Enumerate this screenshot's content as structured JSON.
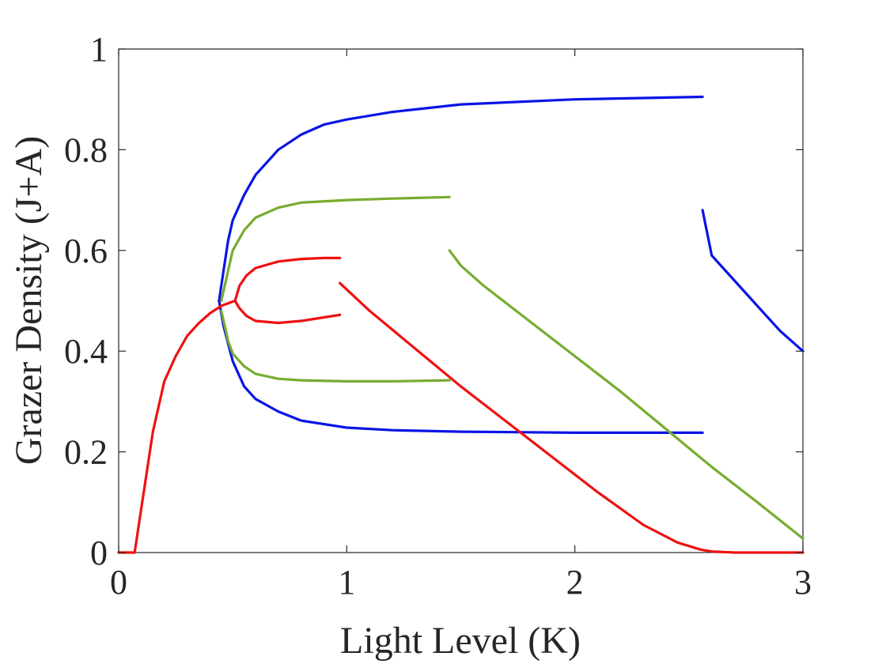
{
  "chart_data": {
    "type": "scatter",
    "title": "",
    "xlabel": "Light Level (K)",
    "ylabel": "Grazer Density (J+A)",
    "xlim": [
      0,
      3
    ],
    "ylim": [
      0,
      1
    ],
    "xticks": [
      0,
      1,
      2,
      3
    ],
    "xtick_labels": [
      "0",
      "1",
      "2",
      "3"
    ],
    "yticks": [
      0,
      0.2,
      0.4,
      0.6,
      0.8,
      1
    ],
    "ytick_labels": [
      "0",
      "0.2",
      "0.4",
      "0.6",
      "0.8",
      "1"
    ],
    "grid": false,
    "colors": {
      "blue": "#0a14e6",
      "green": "#77ac30",
      "red": "#ee1111",
      "axis": "#262626"
    },
    "series": [
      {
        "color": "blue",
        "segment": "upper branch",
        "x": [
          0.44,
          0.46,
          0.48,
          0.5,
          0.55,
          0.6,
          0.7,
          0.8,
          0.9,
          1.0,
          1.2,
          1.5,
          2.0,
          2.56
        ],
        "y": [
          0.5,
          0.56,
          0.62,
          0.66,
          0.71,
          0.75,
          0.8,
          0.83,
          0.85,
          0.86,
          0.875,
          0.89,
          0.9,
          0.905
        ]
      },
      {
        "color": "blue",
        "segment": "lower branch",
        "x": [
          0.44,
          0.46,
          0.5,
          0.55,
          0.6,
          0.7,
          0.8,
          1.0,
          1.2,
          1.5,
          2.0,
          2.56
        ],
        "y": [
          0.5,
          0.45,
          0.38,
          0.33,
          0.305,
          0.28,
          0.262,
          0.248,
          0.243,
          0.24,
          0.238,
          0.238
        ]
      },
      {
        "color": "blue",
        "segment": "right arm",
        "x": [
          2.56,
          2.6,
          2.7,
          2.8,
          2.9,
          3.0
        ],
        "y": [
          0.68,
          0.59,
          0.54,
          0.49,
          0.44,
          0.4
        ]
      },
      {
        "color": "green",
        "segment": "upper branch",
        "x": [
          0.45,
          0.48,
          0.5,
          0.55,
          0.6,
          0.7,
          0.8,
          1.0,
          1.2,
          1.45
        ],
        "y": [
          0.5,
          0.56,
          0.6,
          0.64,
          0.665,
          0.685,
          0.695,
          0.7,
          0.703,
          0.706
        ]
      },
      {
        "color": "green",
        "segment": "lower branch",
        "x": [
          0.45,
          0.48,
          0.5,
          0.55,
          0.6,
          0.7,
          0.8,
          1.0,
          1.2,
          1.45
        ],
        "y": [
          0.48,
          0.42,
          0.395,
          0.37,
          0.355,
          0.345,
          0.342,
          0.34,
          0.34,
          0.342
        ]
      },
      {
        "color": "green",
        "segment": "right arm",
        "x": [
          1.45,
          1.5,
          1.6,
          1.8,
          2.0,
          2.2,
          2.4,
          2.6,
          2.8,
          3.0
        ],
        "y": [
          0.6,
          0.57,
          0.53,
          0.46,
          0.39,
          0.32,
          0.245,
          0.17,
          0.1,
          0.028
        ]
      },
      {
        "color": "red",
        "segment": "onset",
        "x": [
          0.0,
          0.07,
          0.08,
          0.1,
          0.12,
          0.15,
          0.2,
          0.25,
          0.3,
          0.35,
          0.4,
          0.45,
          0.51
        ],
        "y": [
          0.0,
          0.0,
          0.03,
          0.09,
          0.15,
          0.24,
          0.34,
          0.39,
          0.43,
          0.455,
          0.475,
          0.49,
          0.5
        ]
      },
      {
        "color": "red",
        "segment": "upper branch",
        "x": [
          0.51,
          0.53,
          0.56,
          0.6,
          0.7,
          0.8,
          0.9,
          0.97
        ],
        "y": [
          0.5,
          0.53,
          0.55,
          0.565,
          0.578,
          0.583,
          0.585,
          0.585
        ]
      },
      {
        "color": "red",
        "segment": "lower branch",
        "x": [
          0.51,
          0.53,
          0.56,
          0.6,
          0.7,
          0.8,
          0.9,
          0.97
        ],
        "y": [
          0.5,
          0.485,
          0.47,
          0.46,
          0.456,
          0.46,
          0.467,
          0.472
        ]
      },
      {
        "color": "red",
        "segment": "right arm",
        "x": [
          0.97,
          1.1,
          1.3,
          1.5,
          1.7,
          1.9,
          2.1,
          2.3,
          2.45,
          2.55,
          2.6,
          2.7,
          2.8,
          3.0
        ],
        "y": [
          0.535,
          0.48,
          0.405,
          0.33,
          0.26,
          0.19,
          0.12,
          0.055,
          0.02,
          0.006,
          0.002,
          0.0,
          0.0,
          0.0
        ]
      }
    ]
  }
}
